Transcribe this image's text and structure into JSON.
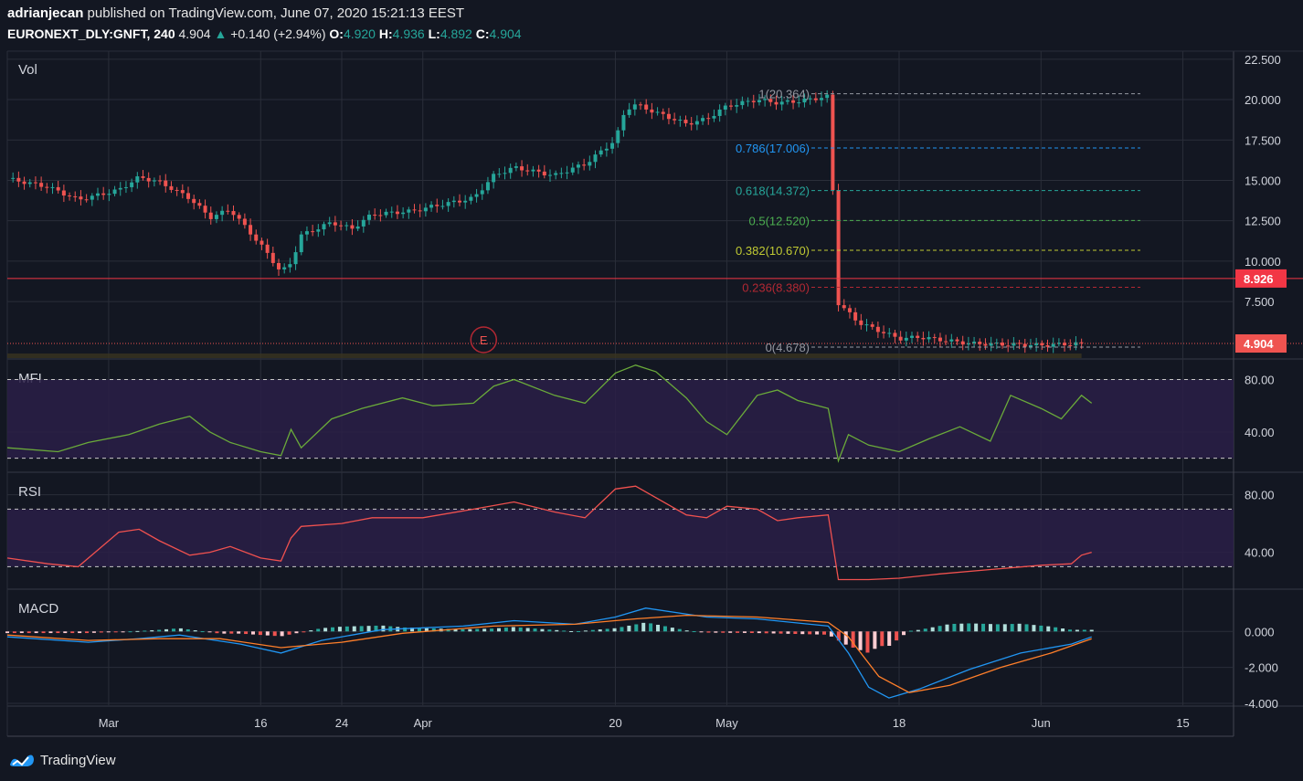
{
  "header": {
    "user": "adrianjecan",
    "published": "published on TradingView.com, June 07, 2020 15:21:13 EEST",
    "symbol": "EURONEXT_DLY:GNFT, 240",
    "last": "4.904",
    "arrow": "▲",
    "change": "+0.140 (+2.94%)",
    "o_label": "O:",
    "o": "4.920",
    "h_label": "H:",
    "h": "4.936",
    "l_label": "L:",
    "l": "4.892",
    "c_label": "C:",
    "c": "4.904"
  },
  "footer": {
    "brand": "TradingView",
    "logo_icon": "tradingview-logo-icon"
  },
  "colors": {
    "background": "#131722",
    "grid": "#2a2e39",
    "up": "#26a69a",
    "down": "#ef5350",
    "hline": "#f23645",
    "mfi": "#6aaa3a",
    "rsi": "#f0514f",
    "macd": "#2196f3",
    "signal": "#ff7f2a",
    "band": "#2a1e47"
  },
  "chart_data": [
    {
      "type": "candlestick",
      "pane": "Vol",
      "title": "Vol",
      "ylim": [
        4.0,
        23.0
      ],
      "y_ticks": [
        "22.500",
        "20.000",
        "17.500",
        "15.000",
        "12.500",
        "10.000",
        "7.500"
      ],
      "y_tick_values": [
        22.5,
        20.0,
        17.5,
        15.0,
        12.5,
        10.0,
        7.5
      ],
      "x_ticks": [
        "Mar",
        "16",
        "24",
        "Apr",
        "20",
        "May",
        "18",
        "Jun",
        "15"
      ],
      "x_tick_dates": [
        "2020-03-01",
        "2020-03-16",
        "2020-03-24",
        "2020-04-01",
        "2020-04-20",
        "2020-05-01",
        "2020-05-18",
        "2020-06-01",
        "2020-06-15"
      ],
      "x_range": [
        "2020-02-20",
        "2020-06-20"
      ],
      "close_path": [
        [
          "2020-02-20",
          15.1
        ],
        [
          "2020-02-24",
          14.6
        ],
        [
          "2020-02-27",
          13.8
        ],
        [
          "2020-03-02",
          14.4
        ],
        [
          "2020-03-04",
          15.2
        ],
        [
          "2020-03-06",
          14.9
        ],
        [
          "2020-03-09",
          13.9
        ],
        [
          "2020-03-11",
          12.7
        ],
        [
          "2020-03-13",
          13.2
        ],
        [
          "2020-03-16",
          11.0
        ],
        [
          "2020-03-17",
          10.2
        ],
        [
          "2020-03-18",
          9.3
        ],
        [
          "2020-03-19",
          9.9
        ],
        [
          "2020-03-20",
          11.6
        ],
        [
          "2020-03-23",
          12.4
        ],
        [
          "2020-03-25",
          12.0
        ],
        [
          "2020-03-27",
          12.9
        ],
        [
          "2020-03-31",
          13.1
        ],
        [
          "2020-04-02",
          13.4
        ],
        [
          "2020-04-06",
          13.9
        ],
        [
          "2020-04-08",
          15.3
        ],
        [
          "2020-04-10",
          15.8
        ],
        [
          "2020-04-14",
          15.3
        ],
        [
          "2020-04-16",
          15.8
        ],
        [
          "2020-04-17",
          16.0
        ],
        [
          "2020-04-20",
          17.5
        ],
        [
          "2020-04-21",
          19.4
        ],
        [
          "2020-04-22",
          19.7
        ],
        [
          "2020-04-24",
          19.2
        ],
        [
          "2020-04-27",
          18.5
        ],
        [
          "2020-04-29",
          18.8
        ],
        [
          "2020-05-01",
          19.6
        ],
        [
          "2020-05-04",
          20.0
        ],
        [
          "2020-05-06",
          19.8
        ],
        [
          "2020-05-08",
          19.9
        ],
        [
          "2020-05-11",
          20.2
        ],
        [
          "2020-05-12",
          7.4
        ],
        [
          "2020-05-14",
          6.2
        ],
        [
          "2020-05-18",
          5.2
        ],
        [
          "2020-05-20",
          5.3
        ],
        [
          "2020-05-25",
          4.9
        ],
        [
          "2020-06-01",
          4.8
        ],
        [
          "2020-06-05",
          4.9
        ]
      ],
      "current_price": {
        "value": 4.904,
        "label": "4.904"
      },
      "horizontal_line": {
        "value": 8.926,
        "label": "8.926"
      },
      "event_marker": {
        "date": "2020-04-07",
        "label": "E"
      },
      "fibonacci": [
        {
          "label": "1(20.364)",
          "value": 20.364,
          "color": "#9598a1"
        },
        {
          "label": "0.786(17.006)",
          "value": 17.006,
          "color": "#2196f3"
        },
        {
          "label": "0.618(14.372)",
          "value": 14.372,
          "color": "#26a69a"
        },
        {
          "label": "0.5(12.520)",
          "value": 12.52,
          "color": "#4caf50"
        },
        {
          "label": "0.382(10.670)",
          "value": 10.67,
          "color": "#c0ca33"
        },
        {
          "label": "0.236(8.380)",
          "value": 8.38,
          "color": "#b22833"
        },
        {
          "label": "0(4.678)",
          "value": 4.678,
          "color": "#9598a1"
        }
      ]
    },
    {
      "type": "line",
      "pane": "MFI",
      "title": "MFI",
      "ylim": [
        10,
        95
      ],
      "y_ticks": [
        "80.00",
        "40.00"
      ],
      "y_tick_values": [
        80,
        40
      ],
      "band": [
        20,
        80
      ],
      "series": [
        {
          "values": [
            [
              "2020-02-20",
              28
            ],
            [
              "2020-02-25",
              25
            ],
            [
              "2020-02-28",
              32
            ],
            [
              "2020-03-03",
              38
            ],
            [
              "2020-03-06",
              46
            ],
            [
              "2020-03-09",
              52
            ],
            [
              "2020-03-11",
              40
            ],
            [
              "2020-03-13",
              32
            ],
            [
              "2020-03-16",
              25
            ],
            [
              "2020-03-18",
              22
            ],
            [
              "2020-03-19",
              42
            ],
            [
              "2020-03-20",
              28
            ],
            [
              "2020-03-23",
              50
            ],
            [
              "2020-03-26",
              58
            ],
            [
              "2020-03-30",
              66
            ],
            [
              "2020-04-02",
              60
            ],
            [
              "2020-04-06",
              62
            ],
            [
              "2020-04-08",
              75
            ],
            [
              "2020-04-10",
              80
            ],
            [
              "2020-04-14",
              68
            ],
            [
              "2020-04-17",
              62
            ],
            [
              "2020-04-20",
              85
            ],
            [
              "2020-04-22",
              91
            ],
            [
              "2020-04-24",
              86
            ],
            [
              "2020-04-27",
              66
            ],
            [
              "2020-04-29",
              48
            ],
            [
              "2020-05-01",
              38
            ],
            [
              "2020-05-04",
              68
            ],
            [
              "2020-05-06",
              72
            ],
            [
              "2020-05-08",
              64
            ],
            [
              "2020-05-11",
              58
            ],
            [
              "2020-05-12",
              18
            ],
            [
              "2020-05-13",
              38
            ],
            [
              "2020-05-15",
              30
            ],
            [
              "2020-05-18",
              25
            ],
            [
              "2020-05-21",
              35
            ],
            [
              "2020-05-24",
              44
            ],
            [
              "2020-05-27",
              33
            ],
            [
              "2020-05-29",
              68
            ],
            [
              "2020-06-01",
              58
            ],
            [
              "2020-06-03",
              50
            ],
            [
              "2020-06-05",
              68
            ],
            [
              "2020-06-06",
              62
            ]
          ]
        }
      ]
    },
    {
      "type": "line",
      "pane": "RSI",
      "title": "RSI",
      "ylim": [
        15,
        95
      ],
      "y_ticks": [
        "80.00",
        "40.00"
      ],
      "y_tick_values": [
        80,
        40
      ],
      "band": [
        30,
        70
      ],
      "series": [
        {
          "values": [
            [
              "2020-02-20",
              36
            ],
            [
              "2020-02-24",
              32
            ],
            [
              "2020-02-27",
              30
            ],
            [
              "2020-03-02",
              54
            ],
            [
              "2020-03-04",
              56
            ],
            [
              "2020-03-06",
              48
            ],
            [
              "2020-03-09",
              38
            ],
            [
              "2020-03-11",
              40
            ],
            [
              "2020-03-13",
              44
            ],
            [
              "2020-03-16",
              36
            ],
            [
              "2020-03-18",
              34
            ],
            [
              "2020-03-19",
              50
            ],
            [
              "2020-03-20",
              58
            ],
            [
              "2020-03-24",
              60
            ],
            [
              "2020-03-27",
              64
            ],
            [
              "2020-04-01",
              64
            ],
            [
              "2020-04-06",
              70
            ],
            [
              "2020-04-10",
              75
            ],
            [
              "2020-04-14",
              68
            ],
            [
              "2020-04-17",
              64
            ],
            [
              "2020-04-20",
              84
            ],
            [
              "2020-04-22",
              86
            ],
            [
              "2020-04-24",
              78
            ],
            [
              "2020-04-27",
              66
            ],
            [
              "2020-04-29",
              64
            ],
            [
              "2020-05-01",
              72
            ],
            [
              "2020-05-04",
              70
            ],
            [
              "2020-05-06",
              62
            ],
            [
              "2020-05-08",
              64
            ],
            [
              "2020-05-11",
              66
            ],
            [
              "2020-05-12",
              21
            ],
            [
              "2020-05-15",
              21
            ],
            [
              "2020-05-18",
              22
            ],
            [
              "2020-05-22",
              25
            ],
            [
              "2020-05-27",
              28
            ],
            [
              "2020-06-01",
              31
            ],
            [
              "2020-06-04",
              32
            ],
            [
              "2020-06-05",
              38
            ],
            [
              "2020-06-06",
              40
            ]
          ]
        }
      ]
    },
    {
      "type": "line",
      "pane": "MACD",
      "title": "MACD",
      "ylim": [
        -4.1,
        2.3
      ],
      "y_ticks": [
        "0.000",
        "-2.000",
        "-4.000"
      ],
      "y_tick_values": [
        0,
        -2,
        -4
      ],
      "series": [
        {
          "values": [
            [
              "2020-02-20",
              -0.3
            ],
            [
              "2020-02-28",
              -0.6
            ],
            [
              "2020-03-04",
              -0.4
            ],
            [
              "2020-03-08",
              -0.2
            ],
            [
              "2020-03-14",
              -0.7
            ],
            [
              "2020-03-18",
              -1.2
            ],
            [
              "2020-03-22",
              -0.5
            ],
            [
              "2020-03-28",
              0.1
            ],
            [
              "2020-04-05",
              0.3
            ],
            [
              "2020-04-10",
              0.6
            ],
            [
              "2020-04-16",
              0.4
            ],
            [
              "2020-04-20",
              0.8
            ],
            [
              "2020-04-23",
              1.3
            ],
            [
              "2020-04-29",
              0.8
            ],
            [
              "2020-05-04",
              0.7
            ],
            [
              "2020-05-11",
              0.3
            ],
            [
              "2020-05-13",
              -1.2
            ],
            [
              "2020-05-15",
              -3.1
            ],
            [
              "2020-05-17",
              -3.7
            ],
            [
              "2020-05-20",
              -3.2
            ],
            [
              "2020-05-25",
              -2.1
            ],
            [
              "2020-05-30",
              -1.2
            ],
            [
              "2020-06-04",
              -0.7
            ],
            [
              "2020-06-06",
              -0.3
            ]
          ]
        },
        {
          "values": [
            [
              "2020-02-20",
              -0.2
            ],
            [
              "2020-02-28",
              -0.5
            ],
            [
              "2020-03-06",
              -0.4
            ],
            [
              "2020-03-12",
              -0.4
            ],
            [
              "2020-03-18",
              -0.9
            ],
            [
              "2020-03-24",
              -0.6
            ],
            [
              "2020-03-30",
              -0.1
            ],
            [
              "2020-04-08",
              0.3
            ],
            [
              "2020-04-16",
              0.4
            ],
            [
              "2020-04-22",
              0.7
            ],
            [
              "2020-04-27",
              0.9
            ],
            [
              "2020-05-04",
              0.8
            ],
            [
              "2020-05-11",
              0.5
            ],
            [
              "2020-05-13",
              -0.3
            ],
            [
              "2020-05-16",
              -2.5
            ],
            [
              "2020-05-19",
              -3.4
            ],
            [
              "2020-05-23",
              -3.0
            ],
            [
              "2020-05-28",
              -2.0
            ],
            [
              "2020-06-02",
              -1.2
            ],
            [
              "2020-06-06",
              -0.4
            ]
          ]
        }
      ]
    }
  ]
}
